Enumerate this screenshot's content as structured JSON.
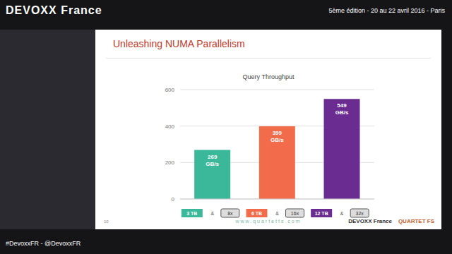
{
  "chart_data": {
    "type": "bar",
    "title": "Query Throughput",
    "categories": [
      "3 TB & 8x",
      "6 TB & 16x",
      "12 TB & 32x"
    ],
    "values": [
      269,
      399,
      549
    ],
    "value_labels": [
      "269 GB/s",
      "399 GB/s",
      "549 GB/s"
    ],
    "colors": [
      "#3bb89a",
      "#f26b4a",
      "#6a2c91"
    ],
    "ylim": [
      0,
      600
    ],
    "yticks": [
      0,
      200,
      400,
      600
    ],
    "grid": true,
    "data_labels": true
  },
  "slide": {
    "title": "Unleashing NUMA Parallelism",
    "page": "10",
    "footer": "www.quartetfs.com",
    "logos": [
      "DEVOXX France",
      "QUARTET FS"
    ]
  },
  "banner": {
    "brand": "DEVOXX France",
    "edition": "5ème édition - 20 au 22 avril 2016 - Paris",
    "hashtag": "#DevoxxFR - @DevoxxFR"
  }
}
